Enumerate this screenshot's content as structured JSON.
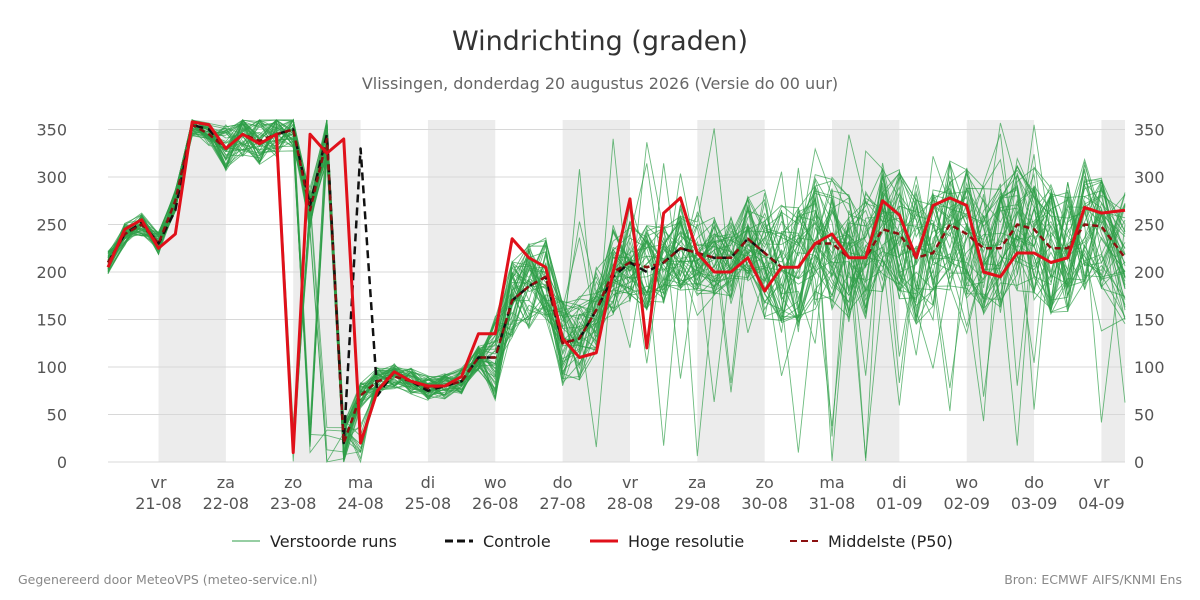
{
  "chart_data": {
    "type": "line",
    "title": "Windrichting (graden)",
    "subtitle": "Vlissingen, donderdag 20 augustus 2026 (Versie do 00 uur)",
    "xlabel": "",
    "ylabel": "",
    "ylim": [
      0,
      360
    ],
    "y_ticks": [
      0,
      50,
      100,
      150,
      200,
      250,
      300,
      350
    ],
    "x_range_days": [
      -0.75,
      14.35
    ],
    "x_ticks": [
      {
        "day": "vr",
        "date": "21-08"
      },
      {
        "day": "za",
        "date": "22-08"
      },
      {
        "day": "zo",
        "date": "23-08"
      },
      {
        "day": "ma",
        "date": "24-08"
      },
      {
        "day": "di",
        "date": "25-08"
      },
      {
        "day": "wo",
        "date": "26-08"
      },
      {
        "day": "do",
        "date": "27-08"
      },
      {
        "day": "vr",
        "date": "28-08"
      },
      {
        "day": "za",
        "date": "29-08"
      },
      {
        "day": "zo",
        "date": "30-08"
      },
      {
        "day": "ma",
        "date": "31-08"
      },
      {
        "day": "di",
        "date": "01-09"
      },
      {
        "day": "wo",
        "date": "02-09"
      },
      {
        "day": "do",
        "date": "03-09"
      },
      {
        "day": "vr",
        "date": "04-09"
      }
    ],
    "grid": true,
    "legend_position": "bottom",
    "night_shading": true,
    "series": [
      {
        "name": "Controle",
        "color": "#111111",
        "style": "dashed",
        "x": [
          -0.75,
          -0.5,
          -0.25,
          0,
          0.25,
          0.5,
          0.75,
          1,
          1.25,
          1.5,
          1.75,
          2,
          2.25,
          2.5,
          2.75,
          3,
          3.25,
          3.5,
          3.75,
          4,
          4.25,
          4.5,
          4.75,
          5,
          5.25,
          5.5,
          5.75,
          6,
          6.25,
          6.5,
          6.75,
          7,
          7.25,
          7.5,
          7.75,
          8,
          8.25,
          8.5,
          8.75,
          9,
          9.25,
          9.5,
          9.75,
          10,
          10.25,
          10.5,
          10.75,
          11,
          11.25,
          11.5,
          11.75,
          12,
          12.25,
          12.5,
          12.75,
          13,
          13.25,
          13.5,
          13.75,
          14,
          14.35
        ],
        "values": [
          210,
          240,
          252,
          230,
          265,
          355,
          350,
          330,
          345,
          335,
          345,
          350,
          270,
          345,
          20,
          330,
          70,
          95,
          85,
          75,
          80,
          85,
          110,
          110,
          170,
          185,
          195,
          125,
          130,
          160,
          195,
          210,
          200,
          210,
          225,
          220,
          215,
          215,
          235,
          220,
          205,
          205,
          230,
          240,
          215,
          215,
          275,
          260,
          215,
          270,
          278,
          270,
          200,
          195,
          220,
          220,
          210,
          215,
          268,
          262,
          265
        ]
      },
      {
        "name": "Hoge resolutie",
        "color": "#e0101a",
        "style": "solid",
        "x": [
          -0.75,
          -0.5,
          -0.25,
          0,
          0.25,
          0.5,
          0.75,
          1,
          1.25,
          1.5,
          1.75,
          2,
          2.25,
          2.5,
          2.75,
          3,
          3.25,
          3.5,
          3.75,
          4,
          4.25,
          4.5,
          4.75,
          5,
          5.25,
          5.5,
          5.75,
          6,
          6.25,
          6.5,
          6.75,
          7,
          7.25,
          7.5,
          7.75,
          8,
          8.25,
          8.5,
          8.75,
          9,
          9.25,
          9.5,
          9.75,
          10,
          10.25,
          10.5,
          10.75,
          11,
          11.25,
          11.5,
          11.75,
          12,
          12.25,
          12.5,
          12.75,
          13,
          13.25,
          13.5,
          13.75,
          14,
          14.35
        ],
        "values": [
          205,
          245,
          255,
          225,
          240,
          358,
          355,
          330,
          345,
          335,
          345,
          10,
          345,
          325,
          340,
          20,
          75,
          95,
          85,
          80,
          80,
          90,
          135,
          135,
          235,
          215,
          205,
          130,
          110,
          115,
          200,
          277,
          120,
          262,
          278,
          220,
          200,
          200,
          215,
          180,
          205,
          205,
          230,
          240,
          215,
          215,
          275,
          260,
          215,
          270,
          278,
          270,
          200,
          195,
          220,
          220,
          210,
          215,
          268,
          262,
          265
        ]
      },
      {
        "name": "Middelste (P50)",
        "color": "#8b1010",
        "style": "dashed",
        "x": [
          -0.75,
          -0.5,
          -0.25,
          0,
          0.25,
          0.5,
          0.75,
          1,
          1.25,
          1.5,
          1.75,
          2,
          2.25,
          2.5,
          2.75,
          3,
          3.25,
          3.5,
          3.75,
          4,
          4.25,
          4.5,
          4.75,
          5,
          5.25,
          5.5,
          5.75,
          6,
          6.25,
          6.5,
          6.75,
          7,
          7.25,
          7.5,
          7.75,
          8,
          8.25,
          8.5,
          8.75,
          9,
          9.25,
          9.5,
          9.75,
          10,
          10.25,
          10.5,
          10.75,
          11,
          11.25,
          11.5,
          11.75,
          12,
          12.25,
          12.5,
          12.75,
          13,
          13.25,
          13.5,
          13.75,
          14,
          14.35
        ],
        "values": [
          210,
          240,
          250,
          230,
          275,
          355,
          345,
          330,
          345,
          338,
          345,
          350,
          265,
          340,
          20,
          70,
          85,
          90,
          85,
          78,
          80,
          85,
          110,
          110,
          170,
          185,
          195,
          125,
          130,
          160,
          200,
          210,
          205,
          210,
          225,
          220,
          215,
          215,
          235,
          220,
          205,
          205,
          230,
          230,
          215,
          215,
          245,
          240,
          215,
          220,
          250,
          240,
          225,
          225,
          250,
          245,
          225,
          225,
          250,
          248,
          215
        ]
      }
    ],
    "ensemble": {
      "name": "Verstoorde runs",
      "color": "#2e9e47",
      "members": 50,
      "style": "thin"
    }
  },
  "footer": {
    "left": "Gegenereerd door MeteoVPS (meteo-service.nl)",
    "right": "Bron: ECMWF AIFS/KNMI Ens"
  }
}
